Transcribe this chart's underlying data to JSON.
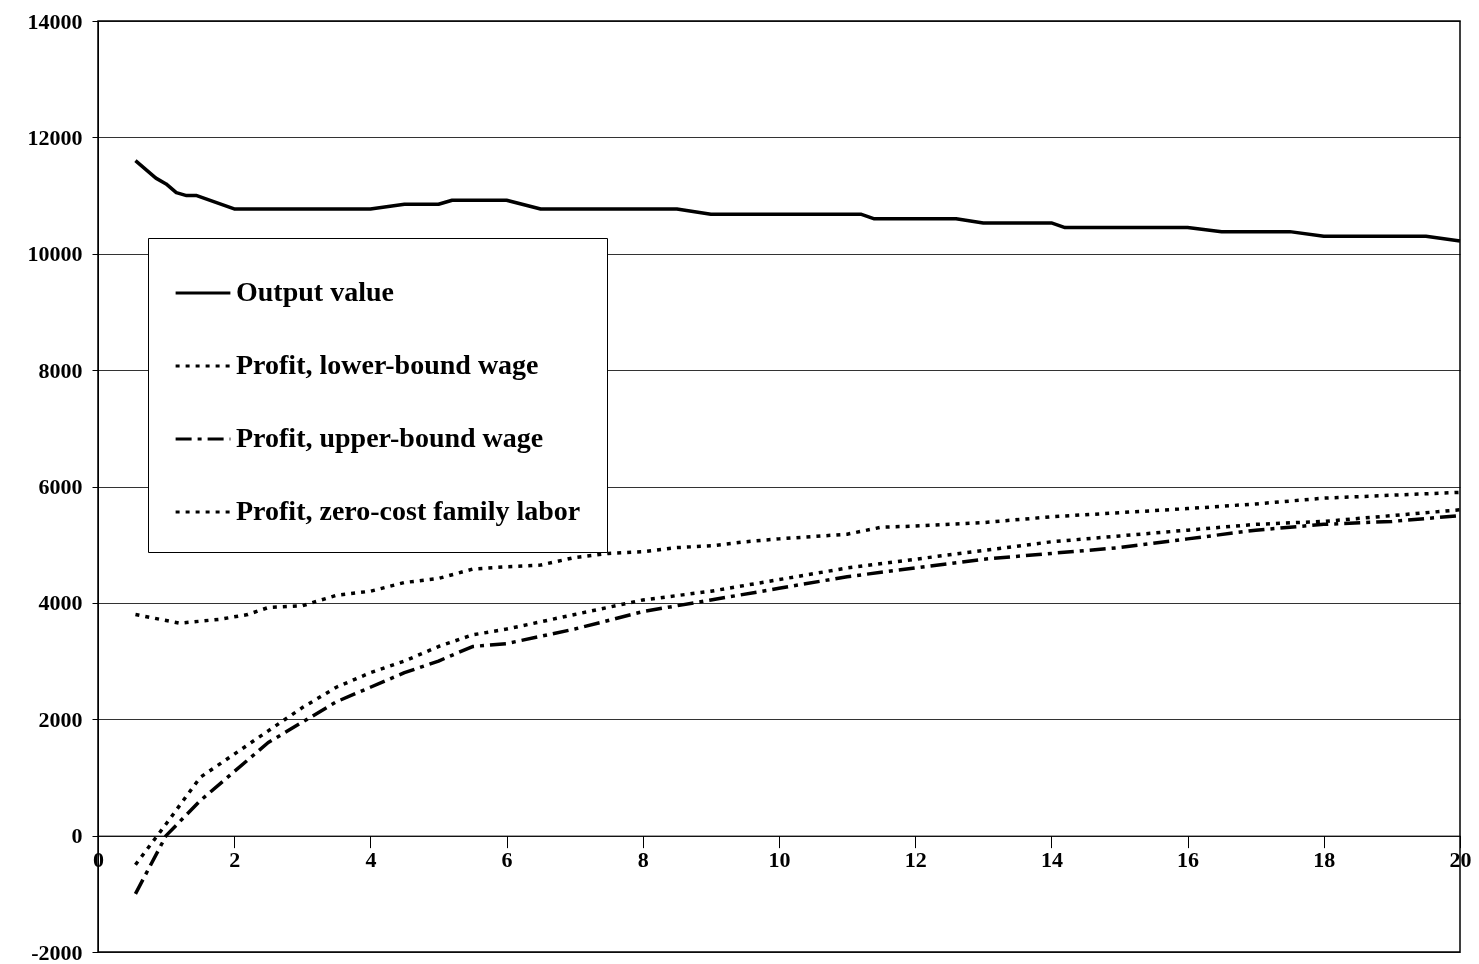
{
  "chart_data": {
    "type": "line",
    "xlim": [
      0,
      20
    ],
    "ylim": [
      -2000,
      14000
    ],
    "xticks": [
      0,
      2,
      4,
      6,
      8,
      10,
      12,
      14,
      16,
      18,
      20
    ],
    "yticks": [
      -2000,
      0,
      2000,
      4000,
      6000,
      8000,
      10000,
      12000,
      14000
    ],
    "grid": "y",
    "legend": "left",
    "series": [
      {
        "name": "Output value",
        "color": "#000000",
        "line_style": "solid",
        "x": [
          0.55,
          0.85,
          1.0,
          1.15,
          1.3,
          1.45,
          2.0,
          2.5,
          3.0,
          3.5,
          4.0,
          4.5,
          5.0,
          5.2,
          6.0,
          6.5,
          8.5,
          9.0,
          11.2,
          11.4,
          12.6,
          13.0,
          14.0,
          14.2,
          16.0,
          16.5,
          17.5,
          18.0,
          19.5,
          20.0
        ],
        "values": [
          11600,
          11300,
          11200,
          11050,
          11000,
          11000,
          10770,
          10770,
          10770,
          10770,
          10770,
          10850,
          10850,
          10920,
          10920,
          10770,
          10770,
          10680,
          10680,
          10600,
          10600,
          10530,
          10530,
          10450,
          10450,
          10380,
          10380,
          10300,
          10300,
          10220
        ]
      },
      {
        "name": "Profit, lower-bound wage",
        "color": "#000000",
        "line_style": "dotted",
        "x": [
          0.55,
          1.0,
          1.5,
          2.0,
          2.5,
          3.0,
          3.5,
          4.0,
          4.5,
          5.0,
          5.5,
          6.0,
          7,
          8,
          9,
          10,
          11,
          12,
          13,
          14,
          15,
          16,
          17,
          18,
          19,
          20
        ],
        "values": [
          -500,
          200,
          1000,
          1400,
          1800,
          2200,
          2550,
          2800,
          3000,
          3250,
          3450,
          3550,
          3800,
          4050,
          4200,
          4400,
          4600,
          4750,
          4900,
          5050,
          5150,
          5250,
          5350,
          5400,
          5500,
          5600
        ]
      },
      {
        "name": "Profit, upper-bound wage",
        "color": "#000000",
        "line_style": "dashed",
        "x": [
          0.55,
          1.0,
          1.5,
          2.0,
          2.5,
          3.0,
          3.5,
          4.0,
          4.5,
          5.0,
          5.5,
          6.0,
          7,
          8,
          9,
          10,
          11,
          12,
          13,
          14,
          15,
          16,
          17,
          18,
          19,
          20
        ],
        "values": [
          -1000,
          0,
          600,
          1100,
          1600,
          1950,
          2300,
          2550,
          2800,
          3000,
          3250,
          3300,
          3550,
          3850,
          4050,
          4250,
          4450,
          4600,
          4750,
          4850,
          4950,
          5100,
          5250,
          5350,
          5400,
          5500
        ]
      },
      {
        "name": "Profit, zero-cost family labor",
        "color": "#000000",
        "line_style": "dotted",
        "x": [
          0.55,
          1.2,
          1.8,
          2.2,
          2.5,
          3.0,
          3.5,
          4.0,
          4.5,
          5.0,
          5.5,
          6.0,
          6.5,
          7.0,
          7.5,
          8.0,
          8.5,
          9.0,
          9.5,
          10,
          11,
          11.5,
          12,
          13,
          14,
          15,
          16,
          17,
          18,
          19,
          20
        ],
        "values": [
          3800,
          3650,
          3720,
          3800,
          3920,
          3950,
          4130,
          4200,
          4350,
          4420,
          4580,
          4620,
          4650,
          4780,
          4850,
          4880,
          4950,
          4980,
          5050,
          5100,
          5180,
          5300,
          5320,
          5380,
          5480,
          5550,
          5620,
          5700,
          5800,
          5850,
          5900
        ]
      }
    ]
  }
}
